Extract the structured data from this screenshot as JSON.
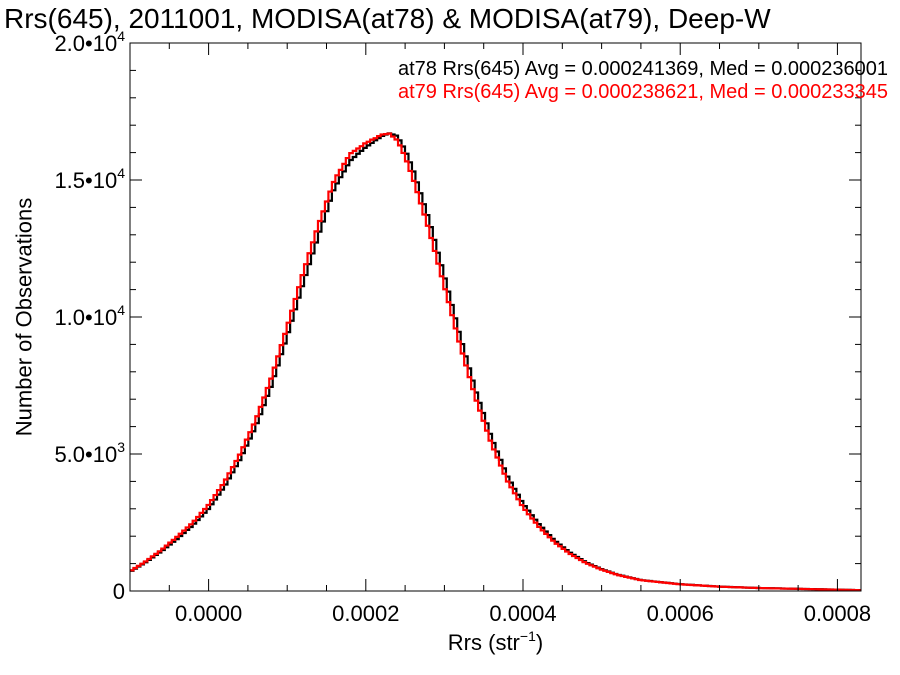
{
  "chart_data": {
    "type": "line",
    "title": "Rrs(645), 2011001, MODISA(at78) & MODISA(at79), Deep-W",
    "xlabel": "Rrs (str",
    "xlabel_exponent": "−1",
    "xlabel_close": ")",
    "ylabel": "Number of Observations",
    "xlim": [
      -0.0001,
      0.00083
    ],
    "ylim": [
      0,
      20000
    ],
    "grid": false,
    "legend_placement": "top-right",
    "x_ticks": [
      {
        "value": 0.0,
        "label": "0.0000"
      },
      {
        "value": 0.0002,
        "label": "0.0002"
      },
      {
        "value": 0.0004,
        "label": "0.0004"
      },
      {
        "value": 0.0006,
        "label": "0.0006"
      },
      {
        "value": 0.0008,
        "label": "0.0008"
      }
    ],
    "y_ticks": [
      {
        "value": 0,
        "label": "0",
        "exponent": ""
      },
      {
        "value": 5000,
        "label": "5.0•10",
        "exponent": "3"
      },
      {
        "value": 10000,
        "label": "1.0•10",
        "exponent": "4"
      },
      {
        "value": 15000,
        "label": "1.5•10",
        "exponent": "4"
      },
      {
        "value": 20000,
        "label": "2.0•10",
        "exponent": "4"
      }
    ],
    "series": [
      {
        "name": "at78",
        "color": "#000000",
        "legend": "at78 Rrs(645) Avg = 0.000241369, Med = 0.000236001",
        "x": [
          -0.0001,
          -8e-05,
          -6e-05,
          -4e-05,
          -2e-05,
          0.0,
          2e-05,
          4e-05,
          6e-05,
          8e-05,
          0.0001,
          0.00012,
          0.00014,
          0.00016,
          0.00018,
          0.0002,
          0.00021,
          0.00022,
          0.00023,
          0.00024,
          0.00025,
          0.00026,
          0.00028,
          0.0003,
          0.00032,
          0.00034,
          0.00036,
          0.00038,
          0.0004,
          0.00042,
          0.00044,
          0.00046,
          0.00048,
          0.0005,
          0.00052,
          0.00055,
          0.0006,
          0.00065,
          0.0007,
          0.00075,
          0.0008,
          0.00083
        ],
        "y": [
          700,
          1050,
          1450,
          1900,
          2400,
          3000,
          3800,
          4800,
          6000,
          7500,
          9300,
          11200,
          13000,
          14700,
          15700,
          16200,
          16400,
          16600,
          16700,
          16600,
          16100,
          15400,
          13600,
          11500,
          9300,
          7300,
          5600,
          4200,
          3200,
          2450,
          1850,
          1400,
          1050,
          800,
          600,
          400,
          250,
          160,
          110,
          80,
          50,
          30
        ]
      },
      {
        "name": "at79",
        "color": "#ff0000",
        "legend": "at79 Rrs(645) Avg = 0.000238621, Med = 0.000233345",
        "x": [
          -0.0001,
          -8e-05,
          -6e-05,
          -4e-05,
          -2e-05,
          0.0,
          2e-05,
          4e-05,
          6e-05,
          8e-05,
          0.0001,
          0.00012,
          0.00014,
          0.00016,
          0.00018,
          0.0002,
          0.00021,
          0.00022,
          0.00023,
          0.00024,
          0.00025,
          0.00026,
          0.00028,
          0.0003,
          0.00032,
          0.00034,
          0.00036,
          0.00038,
          0.0004,
          0.00042,
          0.00044,
          0.00046,
          0.00048,
          0.0005,
          0.00052,
          0.00055,
          0.0006,
          0.00065,
          0.0007,
          0.00075,
          0.0008,
          0.00083
        ],
        "y": [
          720,
          1080,
          1500,
          1980,
          2500,
          3150,
          3980,
          5000,
          6250,
          7800,
          9650,
          11600,
          13400,
          15000,
          15950,
          16350,
          16500,
          16650,
          16700,
          16450,
          15850,
          15050,
          13200,
          11100,
          8950,
          7000,
          5350,
          4020,
          3050,
          2350,
          1780,
          1350,
          1020,
          780,
          590,
          395,
          245,
          158,
          108,
          78,
          48,
          28
        ]
      }
    ]
  }
}
